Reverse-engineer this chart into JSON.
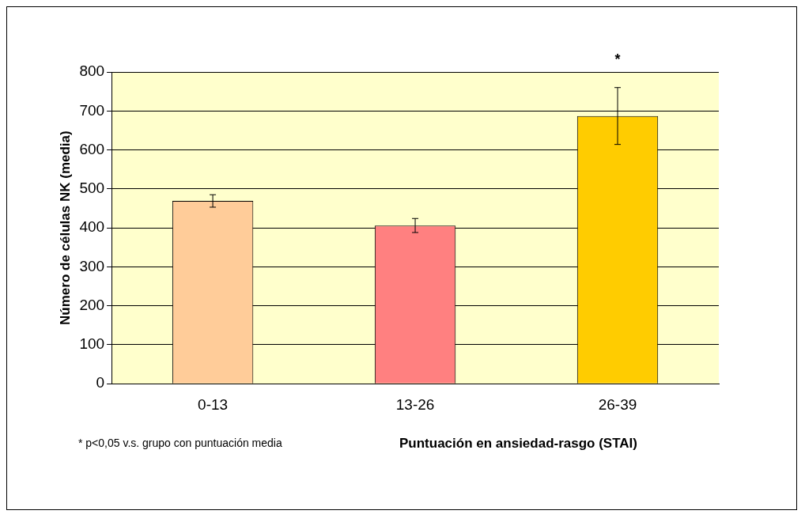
{
  "chart_data": {
    "type": "bar",
    "categories": [
      "0-13",
      "13-26",
      "26-39"
    ],
    "values": [
      469,
      406,
      687
    ],
    "colors": [
      "#ffcc99",
      "#ff8080",
      "#ffcc00"
    ],
    "errors": [
      16,
      18,
      73
    ],
    "ylabel": "Número de células NK (media)",
    "xlabel": "Puntuación en ansiedad-rasgo (STAI)",
    "ylim": [
      0,
      800
    ],
    "yticks": [
      0,
      100,
      200,
      300,
      400,
      500,
      600,
      700,
      800
    ],
    "grid": "y",
    "legend": false,
    "annotations": [
      {
        "text": "*",
        "x": "26-39",
        "y": 760
      },
      "* p<0,05 v.s. grupo con puntuación media"
    ]
  }
}
